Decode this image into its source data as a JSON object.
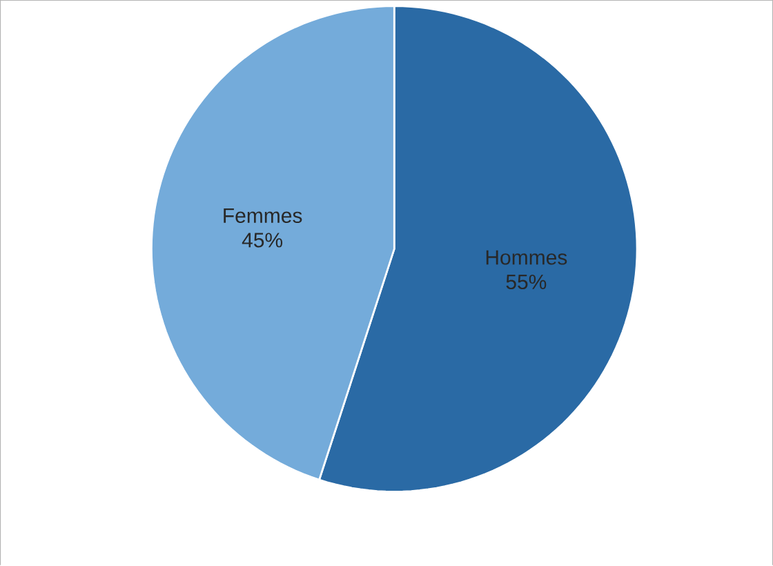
{
  "chart_data": {
    "type": "pie",
    "categories": [
      "Hommes",
      "Femmes"
    ],
    "values": [
      55,
      45
    ],
    "colors": [
      "#2a6aa5",
      "#74abda"
    ],
    "value_labels": [
      "55%",
      "45%"
    ]
  }
}
